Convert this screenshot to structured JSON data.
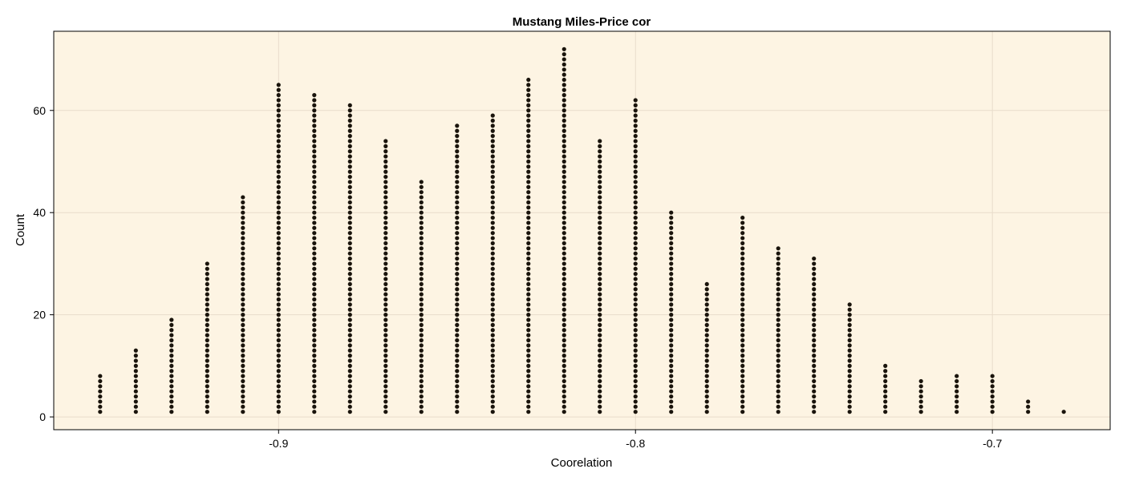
{
  "chart_data": {
    "type": "scatter",
    "title": "Mustang Miles-Price cor",
    "xlabel": "Coorelation",
    "ylabel": "Count",
    "xlim": [
      -0.963,
      -0.667
    ],
    "ylim": [
      -2.5,
      75.5
    ],
    "x_ticks": [
      -0.9,
      -0.8,
      -0.7
    ],
    "x_tick_labels": [
      "-0.9",
      "-0.8",
      "-0.7"
    ],
    "y_ticks": [
      0,
      20,
      40,
      60
    ],
    "y_tick_labels": [
      "0",
      "20",
      "40",
      "60"
    ],
    "grid": true,
    "legend": "none",
    "colors": {
      "background": "#fdf4e3",
      "points": "#1a140c",
      "grid": "#e8dccb",
      "frame": "#000000"
    },
    "series": [
      {
        "x": [
          -0.95,
          -0.94,
          -0.93,
          -0.92,
          -0.91,
          -0.9,
          -0.89,
          -0.88,
          -0.87,
          -0.86,
          -0.85,
          -0.84,
          -0.83,
          -0.82,
          -0.81,
          -0.8,
          -0.79,
          -0.78,
          -0.77,
          -0.76,
          -0.75,
          -0.74,
          -0.73,
          -0.72,
          -0.71,
          -0.7,
          -0.69,
          -0.68
        ],
        "counts": [
          8,
          13,
          19,
          30,
          43,
          65,
          63,
          61,
          54,
          46,
          57,
          59,
          66,
          72,
          54,
          62,
          40,
          26,
          39,
          33,
          31,
          22,
          10,
          7,
          8,
          8,
          3,
          1
        ]
      }
    ]
  }
}
